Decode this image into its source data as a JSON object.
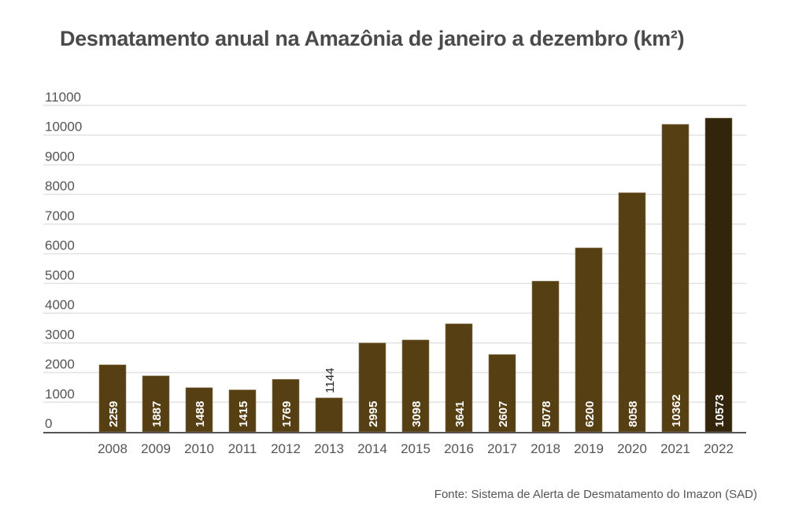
{
  "chart_data": {
    "type": "bar",
    "title": "Desmatamento anual na Amazônia de janeiro a dezembro (km²)",
    "xlabel": "",
    "ylabel": "",
    "categories": [
      "2008",
      "2009",
      "2010",
      "2011",
      "2012",
      "2013",
      "2014",
      "2015",
      "2016",
      "2017",
      "2018",
      "2019",
      "2020",
      "2021",
      "2022"
    ],
    "values": [
      2259,
      1887,
      1488,
      1415,
      1769,
      1144,
      2995,
      3098,
      3641,
      2607,
      5078,
      6200,
      8058,
      10362,
      10573
    ],
    "ylim": [
      0,
      11000
    ],
    "yticks": [
      0,
      1000,
      2000,
      3000,
      4000,
      5000,
      6000,
      7000,
      8000,
      9000,
      10000,
      11000
    ],
    "grid": true,
    "legend": "none",
    "colors": {
      "bar": "#573f14",
      "highlight_bar": "#33250c",
      "highlight_category": "2022",
      "grid": "#e2e2e2",
      "axis": "#555555"
    },
    "source": "Fonte: Sistema de Alerta de Desmatamento do Imazon (SAD)"
  }
}
